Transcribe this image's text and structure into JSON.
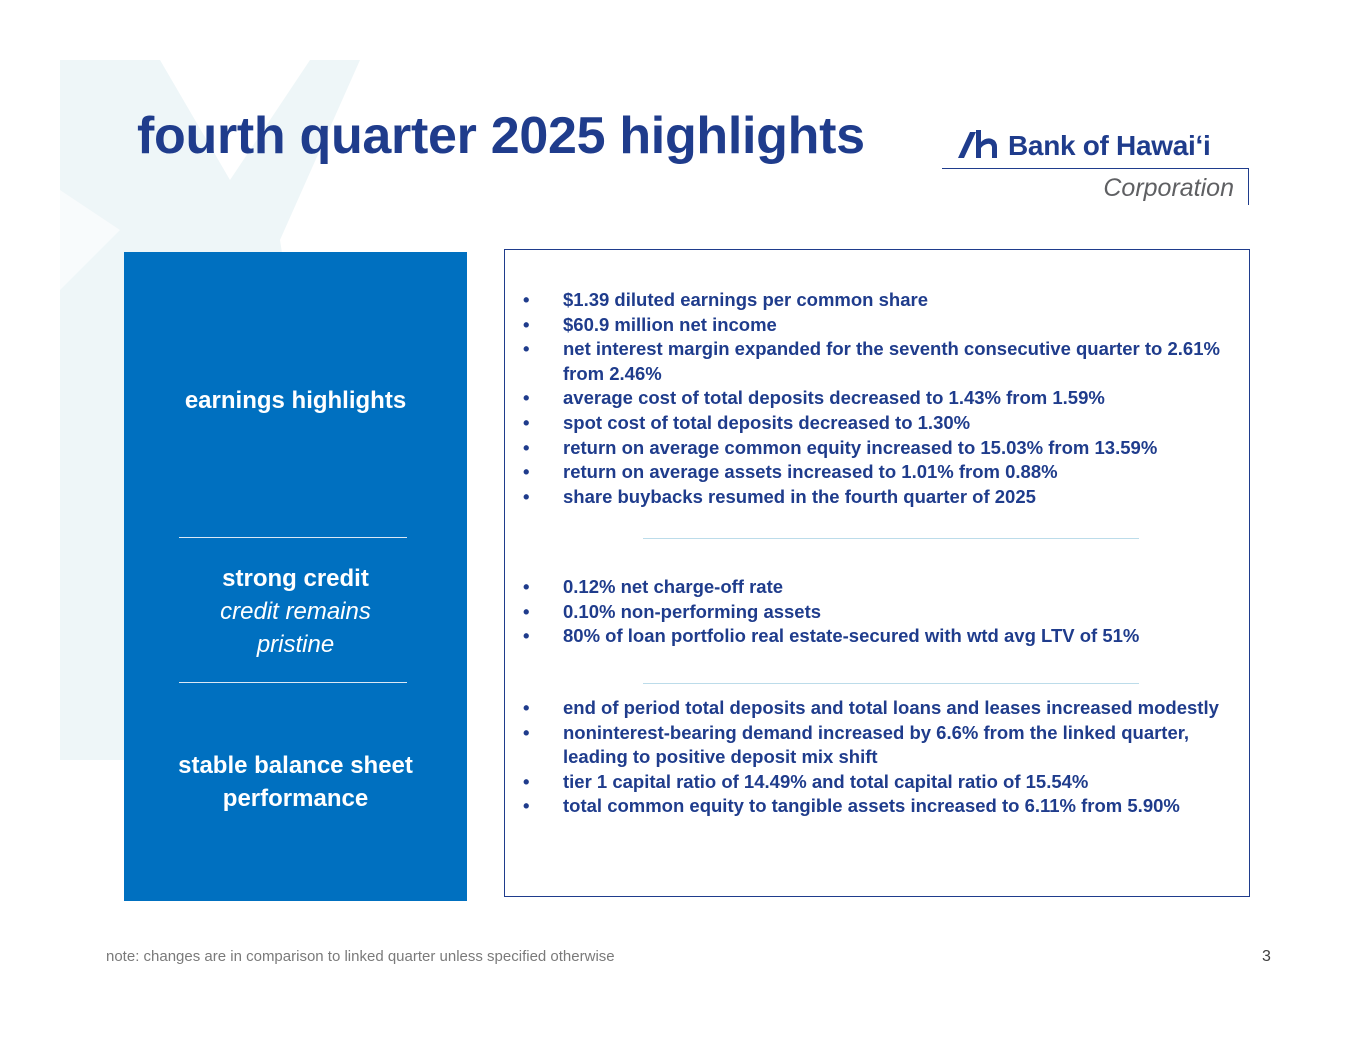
{
  "title": "fourth quarter 2025 highlights",
  "logo": {
    "name": "Bank of Hawaiʻi",
    "subtitle": "Corporation"
  },
  "colors": {
    "brand_navy": "#1f3c8c",
    "panel_blue": "#0070c0",
    "watermark": "#e9f3f7"
  },
  "sections": [
    {
      "heading": "earnings highlights",
      "subheading": "",
      "bullets": [
        "$1.39 diluted earnings per common share",
        "$60.9 million net income",
        "net interest margin expanded for the seventh consecutive quarter to 2.61% from 2.46%",
        "average cost of total deposits decreased to 1.43% from 1.59%",
        "spot cost of total deposits decreased to 1.30%",
        "return on average common equity increased to 15.03% from 13.59%",
        "return on average assets increased to 1.01% from 0.88%",
        "share buybacks resumed in the fourth quarter of 2025"
      ]
    },
    {
      "heading": "strong credit",
      "subheading": "credit remains pristine",
      "bullets": [
        "0.12% net charge-off rate",
        "0.10% non-performing assets",
        "80% of loan portfolio real estate-secured with wtd avg LTV of 51%"
      ]
    },
    {
      "heading": "stable balance sheet performance",
      "subheading": "",
      "bullets": [
        "end of period total deposits and total loans and leases increased modestly",
        "noninterest-bearing demand increased by 6.6% from the linked quarter, leading to positive deposit mix shift",
        "tier 1 capital ratio of 14.49% and total capital ratio of 15.54%",
        "total common equity to tangible assets increased to 6.11% from 5.90%"
      ]
    }
  ],
  "bullet_glyph": "•",
  "footnote": "note: changes are in comparison to linked quarter unless specified otherwise",
  "page_number": "3"
}
